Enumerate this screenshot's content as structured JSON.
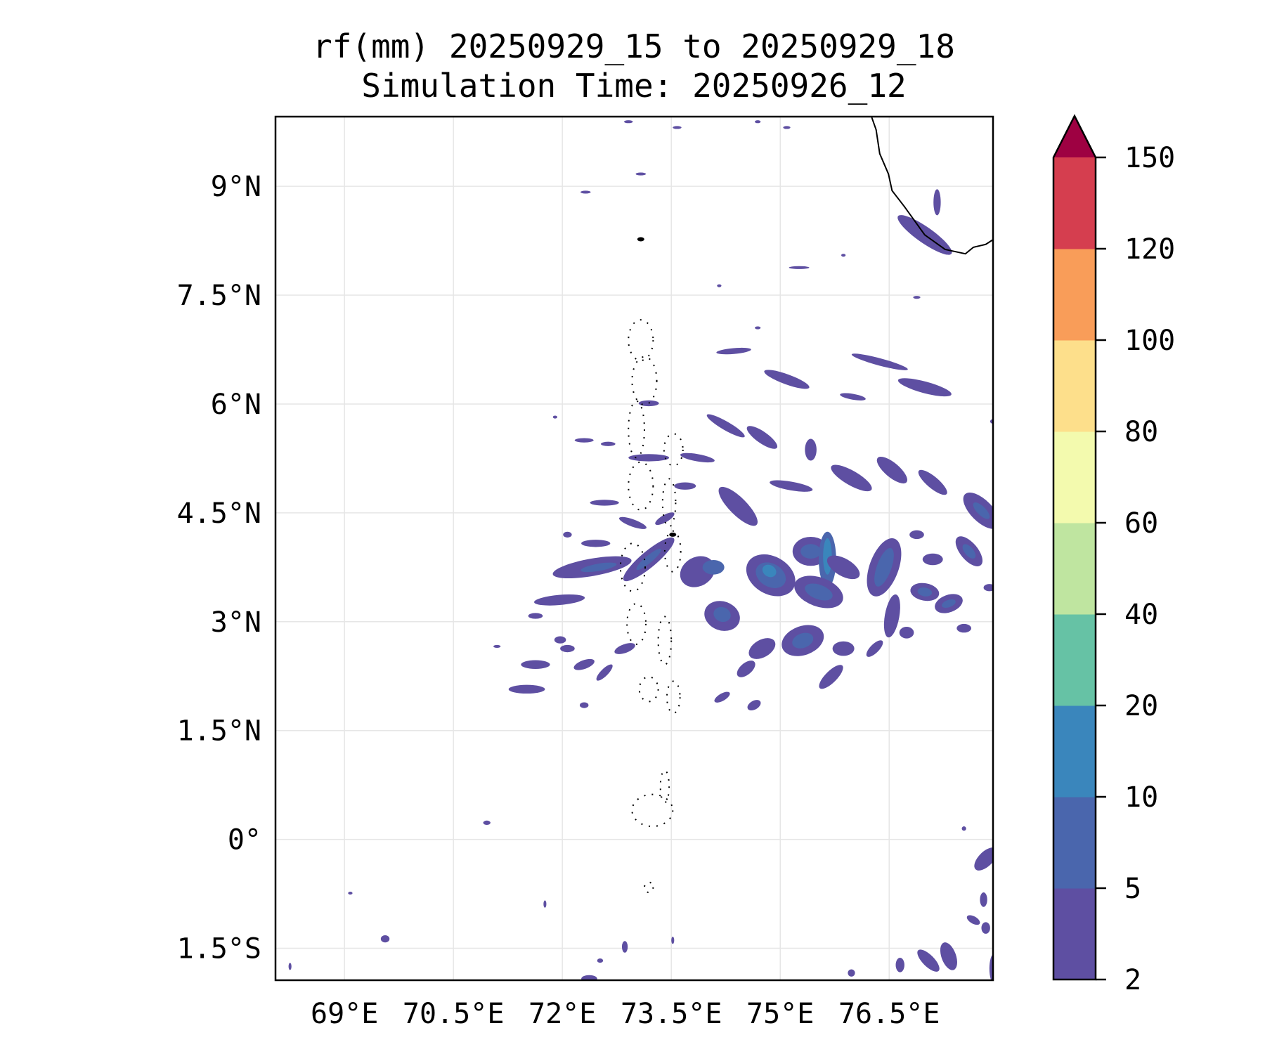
{
  "chart_data": {
    "type": "heatmap",
    "subtype": "filled-contour-map",
    "title_line1": "rf(mm) 20250929_15 to 20250929_18",
    "title_line2": "Simulation Time: 20250926_12",
    "xlim": [
      68.05,
      77.93
    ],
    "ylim": [
      -1.94,
      9.96
    ],
    "x_ticks": [
      69,
      70.5,
      72,
      73.5,
      75,
      76.5
    ],
    "x_tick_labels": [
      "69°E",
      "70.5°E",
      "72°E",
      "73.5°E",
      "75°E",
      "76.5°E"
    ],
    "y_ticks": [
      9,
      7.5,
      6,
      4.5,
      3,
      1.5,
      0,
      -1.5
    ],
    "y_tick_labels": [
      "9°N",
      "7.5°N",
      "6°N",
      "4.5°N",
      "3°N",
      "1.5°N",
      "0°",
      "1.5°S"
    ],
    "grid": true,
    "colorbar": {
      "levels": [
        2,
        5,
        10,
        20,
        40,
        60,
        80,
        100,
        120,
        150
      ],
      "tick_labels": [
        "2",
        "5",
        "10",
        "20",
        "40",
        "60",
        "80",
        "100",
        "120",
        "150"
      ],
      "colors": [
        "#5e4fa2",
        "#4a66ad",
        "#3a86bc",
        "#66c2a5",
        "#bfe5a0",
        "#f3faae",
        "#fddf8b",
        "#f99d59",
        "#d53e4f"
      ],
      "extend_max_color": "#9e0142",
      "placement": "right"
    },
    "coastline": [
      [
        76.26,
        9.95
      ],
      [
        76.32,
        9.78
      ],
      [
        76.37,
        9.45
      ],
      [
        76.49,
        9.17
      ],
      [
        76.54,
        8.94
      ],
      [
        76.71,
        8.72
      ],
      [
        76.99,
        8.33
      ],
      [
        77.27,
        8.13
      ],
      [
        77.55,
        8.07
      ],
      [
        77.66,
        8.16
      ],
      [
        77.83,
        8.2
      ],
      [
        78.0,
        8.31
      ]
    ],
    "atolls": [
      [
        73.08,
        6.88,
        0.17,
        0.28
      ],
      [
        73.13,
        6.32,
        0.17,
        0.33
      ],
      [
        73.02,
        5.65,
        0.11,
        0.39
      ],
      [
        73.53,
        5.37,
        0.13,
        0.22
      ],
      [
        73.08,
        4.87,
        0.17,
        0.33
      ],
      [
        73.47,
        4.64,
        0.09,
        0.33
      ],
      [
        72.97,
        3.75,
        0.17,
        0.33
      ],
      [
        73.52,
        3.97,
        0.11,
        0.28
      ],
      [
        73.02,
        2.97,
        0.13,
        0.28
      ],
      [
        73.41,
        2.74,
        0.09,
        0.33
      ],
      [
        73.19,
        2.07,
        0.13,
        0.17
      ],
      [
        73.53,
        1.96,
        0.09,
        0.22
      ],
      [
        73.41,
        0.73,
        0.06,
        0.22
      ],
      [
        73.24,
        0.4,
        0.28,
        0.22
      ],
      [
        73.19,
        -0.66,
        0.06,
        0.07
      ]
    ],
    "islands": [
      [
        73.08,
        8.27
      ],
      [
        73.52,
        4.2
      ]
    ],
    "rain_cells_lon_lat_rx_ry_rot_level": [
      [
        76.99,
        8.33,
        0.45,
        0.11,
        35,
        0
      ],
      [
        77.16,
        8.78,
        0.05,
        0.18,
        0,
        0
      ],
      [
        73.08,
        9.17,
        0.07,
        0.02,
        0,
        0
      ],
      [
        72.32,
        8.92,
        0.07,
        0.02,
        0,
        0
      ],
      [
        75.26,
        7.88,
        0.14,
        0.02,
        0,
        0
      ],
      [
        74.36,
        6.73,
        0.24,
        0.04,
        -5,
        0
      ],
      [
        75.09,
        6.34,
        0.33,
        0.07,
        20,
        0
      ],
      [
        76.37,
        6.58,
        0.4,
        0.05,
        15,
        0
      ],
      [
        76.99,
        6.23,
        0.38,
        0.08,
        15,
        0
      ],
      [
        76.0,
        6.1,
        0.18,
        0.04,
        10,
        0
      ],
      [
        73.19,
        6.01,
        0.14,
        0.04,
        0,
        0
      ],
      [
        74.25,
        5.7,
        0.3,
        0.06,
        30,
        0
      ],
      [
        74.75,
        5.54,
        0.25,
        0.08,
        35,
        0
      ],
      [
        72.3,
        5.5,
        0.13,
        0.03,
        0,
        0
      ],
      [
        72.63,
        5.45,
        0.1,
        0.03,
        0,
        0
      ],
      [
        73.19,
        5.26,
        0.28,
        0.05,
        0,
        0
      ],
      [
        73.86,
        5.26,
        0.24,
        0.05,
        10,
        0
      ],
      [
        75.42,
        5.37,
        0.08,
        0.15,
        0,
        0
      ],
      [
        75.98,
        4.98,
        0.32,
        0.1,
        30,
        0
      ],
      [
        76.54,
        5.09,
        0.26,
        0.1,
        40,
        0
      ],
      [
        77.1,
        4.92,
        0.25,
        0.08,
        40,
        0
      ],
      [
        77.77,
        4.53,
        0.32,
        0.15,
        45,
        0
      ],
      [
        77.77,
        4.53,
        0.15,
        0.06,
        45,
        1
      ],
      [
        75.15,
        4.87,
        0.3,
        0.06,
        10,
        0
      ],
      [
        74.42,
        4.59,
        0.36,
        0.12,
        45,
        0
      ],
      [
        73.69,
        4.87,
        0.15,
        0.05,
        0,
        0
      ],
      [
        72.58,
        4.64,
        0.2,
        0.04,
        0,
        0
      ],
      [
        72.97,
        4.36,
        0.2,
        0.05,
        20,
        0
      ],
      [
        73.41,
        4.42,
        0.15,
        0.05,
        -30,
        0
      ],
      [
        72.46,
        4.08,
        0.2,
        0.05,
        0,
        0
      ],
      [
        72.07,
        4.2,
        0.06,
        0.04,
        0,
        0
      ],
      [
        72.41,
        3.75,
        0.55,
        0.12,
        -10,
        0
      ],
      [
        72.5,
        3.75,
        0.25,
        0.05,
        -10,
        1
      ],
      [
        71.96,
        3.3,
        0.35,
        0.07,
        -5,
        0
      ],
      [
        73.19,
        3.86,
        0.45,
        0.11,
        -40,
        0
      ],
      [
        73.19,
        3.86,
        0.22,
        0.05,
        -40,
        1
      ],
      [
        73.86,
        3.69,
        0.25,
        0.2,
        -30,
        0
      ],
      [
        74.08,
        3.75,
        0.15,
        0.1,
        0,
        1
      ],
      [
        74.2,
        3.08,
        0.25,
        0.2,
        20,
        0
      ],
      [
        74.2,
        3.1,
        0.12,
        0.1,
        20,
        1
      ],
      [
        74.87,
        3.64,
        0.36,
        0.26,
        30,
        0
      ],
      [
        74.87,
        3.64,
        0.22,
        0.16,
        30,
        1
      ],
      [
        74.85,
        3.7,
        0.1,
        0.08,
        30,
        2
      ],
      [
        75.42,
        3.97,
        0.25,
        0.2,
        0,
        0
      ],
      [
        75.42,
        3.97,
        0.14,
        0.1,
        0,
        1
      ],
      [
        75.65,
        3.86,
        0.12,
        0.38,
        0,
        1
      ],
      [
        75.65,
        3.9,
        0.06,
        0.25,
        0,
        2
      ],
      [
        75.53,
        3.41,
        0.35,
        0.2,
        20,
        0
      ],
      [
        75.53,
        3.41,
        0.2,
        0.1,
        20,
        1
      ],
      [
        75.87,
        3.75,
        0.25,
        0.12,
        30,
        0
      ],
      [
        76.43,
        3.75,
        0.2,
        0.42,
        20,
        0
      ],
      [
        76.43,
        3.75,
        0.1,
        0.28,
        20,
        1
      ],
      [
        76.54,
        3.08,
        0.1,
        0.3,
        10,
        0
      ],
      [
        76.88,
        4.2,
        0.1,
        0.06,
        0,
        0
      ],
      [
        77.1,
        3.86,
        0.14,
        0.08,
        0,
        0
      ],
      [
        76.99,
        3.41,
        0.2,
        0.12,
        10,
        0
      ],
      [
        76.99,
        3.41,
        0.1,
        0.06,
        10,
        1
      ],
      [
        77.32,
        3.25,
        0.2,
        0.12,
        -20,
        0
      ],
      [
        77.32,
        3.25,
        0.1,
        0.05,
        -20,
        1
      ],
      [
        77.6,
        3.97,
        0.12,
        0.25,
        -40,
        0
      ],
      [
        77.6,
        3.97,
        0.06,
        0.12,
        -40,
        1
      ],
      [
        77.88,
        3.47,
        0.08,
        0.05,
        0,
        0
      ],
      [
        75.31,
        2.74,
        0.3,
        0.2,
        -20,
        0
      ],
      [
        75.31,
        2.74,
        0.15,
        0.1,
        -20,
        1
      ],
      [
        75.87,
        2.63,
        0.15,
        0.1,
        0,
        0
      ],
      [
        74.75,
        2.63,
        0.2,
        0.12,
        -30,
        0
      ],
      [
        74.53,
        2.35,
        0.15,
        0.08,
        -40,
        0
      ],
      [
        75.7,
        2.24,
        0.22,
        0.08,
        -45,
        0
      ],
      [
        76.3,
        2.63,
        0.15,
        0.06,
        -45,
        0
      ],
      [
        76.74,
        2.85,
        0.1,
        0.08,
        0,
        0
      ],
      [
        77.53,
        2.91,
        0.1,
        0.06,
        0,
        0
      ],
      [
        71.63,
        2.41,
        0.2,
        0.06,
        0,
        0
      ],
      [
        71.51,
        2.07,
        0.25,
        0.06,
        0,
        0
      ],
      [
        72.3,
        2.41,
        0.15,
        0.06,
        -20,
        0
      ],
      [
        72.58,
        2.3,
        0.15,
        0.05,
        -45,
        0
      ],
      [
        72.86,
        2.63,
        0.15,
        0.06,
        -20,
        0
      ],
      [
        72.07,
        2.63,
        0.1,
        0.05,
        0,
        0
      ],
      [
        71.97,
        2.75,
        0.08,
        0.05,
        0,
        0
      ],
      [
        71.63,
        3.08,
        0.1,
        0.04,
        0,
        0
      ],
      [
        72.3,
        1.85,
        0.06,
        0.04,
        0,
        0
      ],
      [
        74.2,
        1.96,
        0.12,
        0.05,
        -30,
        0
      ],
      [
        74.64,
        1.85,
        0.1,
        0.06,
        -30,
        0
      ],
      [
        70.96,
        0.23,
        0.05,
        0.03,
        0,
        0
      ],
      [
        77.83,
        -0.27,
        0.1,
        0.2,
        45,
        0
      ],
      [
        77.8,
        -0.83,
        0.05,
        0.1,
        0,
        0
      ],
      [
        77.66,
        -1.11,
        0.1,
        0.05,
        30,
        0
      ],
      [
        77.83,
        -1.22,
        0.06,
        0.08,
        0,
        0
      ],
      [
        77.04,
        -1.67,
        0.2,
        0.08,
        45,
        0
      ],
      [
        77.32,
        -1.61,
        0.1,
        0.2,
        -20,
        0
      ],
      [
        76.65,
        -1.73,
        0.06,
        0.1,
        0,
        0
      ],
      [
        77.94,
        -1.78,
        0.06,
        0.2,
        0,
        0
      ],
      [
        75.98,
        -1.84,
        0.05,
        0.05,
        0,
        0
      ],
      [
        69.56,
        -1.37,
        0.06,
        0.05,
        0,
        0
      ],
      [
        72.86,
        -1.48,
        0.04,
        0.08,
        0,
        0
      ],
      [
        72.37,
        -1.92,
        0.11,
        0.05,
        0,
        0
      ],
      [
        72.52,
        -1.67,
        0.04,
        0.03,
        0,
        0
      ],
      [
        73.52,
        -1.39,
        0.02,
        0.05,
        0,
        0
      ],
      [
        71.76,
        -0.89,
        0.02,
        0.05,
        0,
        0
      ],
      [
        77.53,
        0.15,
        0.03,
        0.03,
        45,
        0
      ],
      [
        74.69,
        7.05,
        0.04,
        0.02,
        0,
        0
      ],
      [
        74.16,
        7.63,
        0.03,
        0.02,
        0,
        0
      ],
      [
        75.87,
        8.05,
        0.03,
        0.02,
        0,
        0
      ],
      [
        76.88,
        7.47,
        0.05,
        0.02,
        0,
        0
      ],
      [
        77.97,
        5.76,
        0.08,
        0.04,
        0,
        0
      ],
      [
        71.9,
        5.82,
        0.03,
        0.02,
        0,
        0
      ],
      [
        71.1,
        2.66,
        0.05,
        0.02,
        0,
        0
      ],
      [
        73.58,
        9.81,
        0.06,
        0.02,
        0,
        0
      ],
      [
        72.91,
        9.89,
        0.06,
        0.02,
        0,
        0
      ],
      [
        75.09,
        9.81,
        0.05,
        0.02,
        0,
        0
      ],
      [
        74.69,
        9.89,
        0.04,
        0.02,
        0,
        0
      ],
      [
        69.08,
        -0.74,
        0.03,
        0.02,
        0,
        0
      ],
      [
        68.25,
        -1.75,
        0.02,
        0.05,
        0,
        0
      ]
    ]
  }
}
